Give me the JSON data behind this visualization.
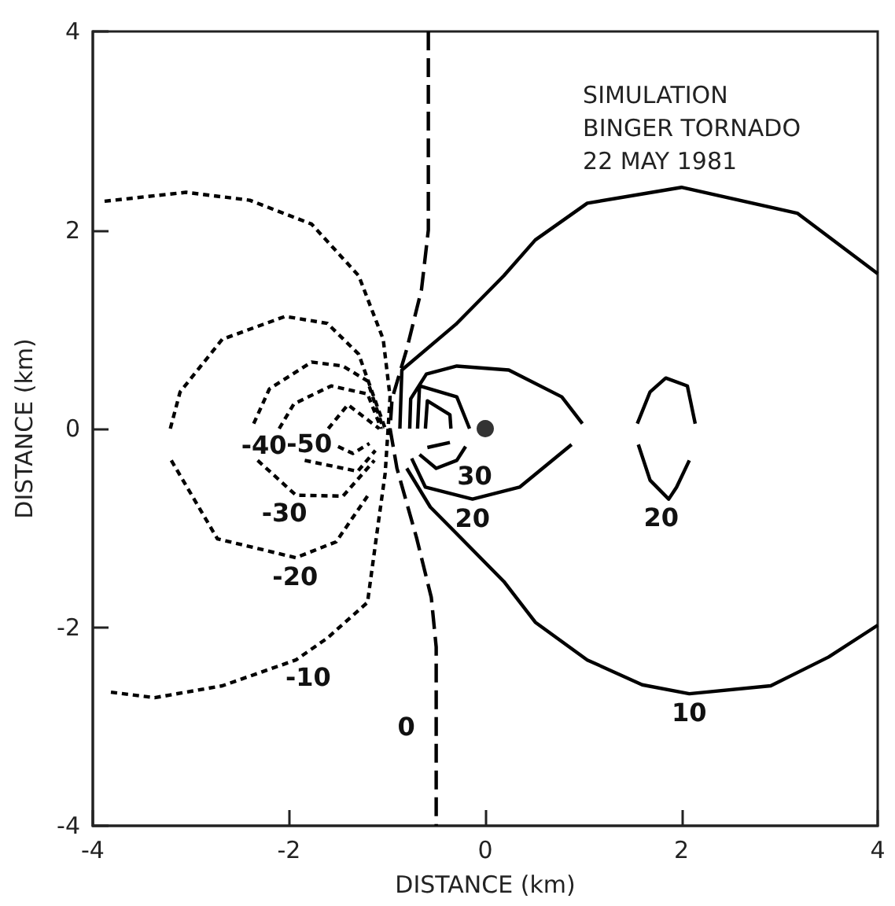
{
  "chart_data": {
    "type": "line",
    "xlabel": "DISTANCE (km)",
    "ylabel": "DISTANCE (km)",
    "xlim": [
      -4,
      4
    ],
    "ylim": [
      -4,
      4
    ],
    "xticks": [
      -4,
      -2,
      0,
      2,
      4
    ],
    "yticks": [
      -4,
      -2,
      0,
      2,
      4
    ],
    "marker": "none",
    "series": [
      {
        "color": "#000000",
        "line_style": "dashed",
        "x": [
          -0.58,
          -0.58,
          -0.58,
          -0.65,
          -0.8,
          -0.95,
          -0.97,
          -0.9,
          -0.7,
          -0.55,
          -0.5,
          -0.5,
          -0.5
        ],
        "values": [
          4,
          3,
          2,
          1.4,
          0.8,
          0.3,
          0,
          -0.4,
          -1.1,
          -1.7,
          -2.2,
          -3,
          -4
        ]
      },
      {
        "color": "#000000",
        "line_style": "dotted",
        "x": [
          -3.88,
          -3.05,
          -2.4,
          -1.77,
          -1.29,
          -1.04,
          -0.97,
          -0.99,
          -1.02,
          -1.09,
          -1.2,
          -1.61,
          -1.93,
          -2.68,
          -3.37,
          -3.85
        ],
        "values": [
          2.29,
          2.38,
          2.3,
          2.06,
          1.54,
          0.9,
          0.32,
          0,
          -0.45,
          -0.95,
          -1.75,
          -2.11,
          -2.33,
          -2.59,
          -2.71,
          -2.65
        ]
      },
      {
        "color": "#000000",
        "line_style": "dotted",
        "x": [
          -3.21,
          -3.11,
          -2.68,
          -2.04,
          -1.61,
          -1.29,
          -1.02
        ],
        "values": [
          0,
          0.37,
          0.9,
          1.13,
          1.06,
          0.75,
          0
        ]
      },
      {
        "color": "#000000",
        "line_style": "dotted",
        "x": [
          -3.2,
          -2.73,
          -1.93,
          -1.52,
          -1.2
        ],
        "values": [
          -0.32,
          -1.11,
          -1.3,
          -1.14,
          -0.68
        ]
      },
      {
        "color": "#000000",
        "line_style": "dotted",
        "x": [
          -2.36,
          -2.2,
          -1.77,
          -1.45,
          -1.2,
          -1.04
        ],
        "values": [
          0.05,
          0.4,
          0.67,
          0.63,
          0.48,
          0
        ]
      },
      {
        "color": "#000000",
        "line_style": "dotted",
        "x": [
          -2.32,
          -1.93,
          -1.45,
          -1.13
        ],
        "values": [
          -0.32,
          -0.67,
          -0.68,
          -0.32
        ]
      },
      {
        "color": "#000000",
        "line_style": "dotted",
        "x": [
          -2.1,
          -1.95,
          -1.57,
          -1.2,
          -1.06
        ],
        "values": [
          0,
          0.25,
          0.43,
          0.35,
          0
        ]
      },
      {
        "color": "#000000",
        "line_style": "dotted",
        "x": [
          -1.84,
          -1.3,
          -1.12
        ],
        "values": [
          -0.32,
          -0.43,
          -0.22
        ]
      },
      {
        "color": "#000000",
        "line_style": "dotted",
        "x": [
          -1.6,
          -1.4,
          -1.08
        ],
        "values": [
          0,
          0.24,
          0
        ]
      },
      {
        "color": "#000000",
        "line_style": "dotted",
        "x": [
          -1.5,
          -1.35,
          -1.18
        ],
        "values": [
          -0.18,
          -0.25,
          -0.15
        ]
      },
      {
        "color": "#000000",
        "line_style": "solid",
        "x": [
          -0.87,
          -0.86,
          -0.85,
          -0.3,
          0.19,
          0.51,
          1.04,
          2,
          3.18,
          4
        ],
        "values": [
          0,
          0.3,
          0.59,
          1.05,
          1.54,
          1.9,
          2.27,
          2.43,
          2.17,
          1.56
        ]
      },
      {
        "color": "#000000",
        "line_style": "solid",
        "x": [
          -0.8,
          -0.56,
          -0.29,
          0.19,
          0.51,
          1.04,
          1.6,
          2.08,
          2.91,
          3.5,
          4
        ],
        "values": [
          -0.4,
          -0.79,
          -1.06,
          -1.54,
          -1.95,
          -2.33,
          -2.58,
          -2.67,
          -2.59,
          -2.3,
          -1.98
        ]
      },
      {
        "color": "#000000",
        "line_style": "solid",
        "x": [
          -0.77,
          -0.76,
          -0.6,
          -0.29,
          0.24,
          0.78,
          0.99
        ],
        "values": [
          0,
          0.3,
          0.55,
          0.63,
          0.59,
          0.32,
          0.05
        ]
      },
      {
        "color": "#000000",
        "line_style": "solid",
        "x": [
          -0.75,
          -0.61,
          -0.13,
          0.35,
          0.88
        ],
        "values": [
          -0.3,
          -0.59,
          -0.71,
          -0.59,
          -0.16
        ]
      },
      {
        "color": "#000000",
        "line_style": "solid",
        "x": [
          1.55,
          1.68,
          1.84,
          2.06,
          2.14
        ],
        "values": [
          0.05,
          0.37,
          0.51,
          0.43,
          0.05
        ]
      },
      {
        "color": "#000000",
        "line_style": "solid",
        "x": [
          1.56,
          1.68,
          1.87,
          1.95,
          2.08
        ],
        "values": [
          -0.16,
          -0.52,
          -0.71,
          -0.59,
          -0.32
        ]
      },
      {
        "color": "#000000",
        "line_style": "solid",
        "x": [
          -0.69,
          -0.67,
          -0.29,
          -0.16
        ],
        "values": [
          0,
          0.43,
          0.32,
          0
        ]
      },
      {
        "color": "#000000",
        "line_style": "solid",
        "x": [
          -0.67,
          -0.5,
          -0.29,
          -0.2
        ],
        "values": [
          -0.26,
          -0.4,
          -0.32,
          -0.18
        ]
      },
      {
        "color": "#000000",
        "line_style": "solid",
        "x": [
          -0.61,
          -0.59,
          -0.36,
          -0.35
        ],
        "values": [
          0,
          0.28,
          0.14,
          0
        ]
      },
      {
        "color": "#000000",
        "line_style": "solid",
        "x": [
          -0.59,
          -0.36
        ],
        "values": [
          -0.19,
          -0.14
        ]
      },
      {
        "type": "scatter",
        "marker": "circle",
        "color": "#000000",
        "x": [
          0
        ],
        "values": [
          0
        ]
      }
    ],
    "annotations": [
      "SIMULATION\nBINGER TORNADO\n22 MAY 1981",
      {
        "text": "-40",
        "x": -2.1,
        "y": 0
      },
      {
        "text": "-50",
        "x": -1.6,
        "y": 0
      },
      {
        "text": "-30",
        "x": -1.93,
        "y": -0.67
      },
      {
        "text": "-20",
        "x": -1.93,
        "y": -1.3
      },
      {
        "text": "-10",
        "x": -1.93,
        "y": -2.33
      },
      {
        "text": "0",
        "x": -0.5,
        "y": -3
      },
      {
        "text": "10",
        "x": 2.08,
        "y": -2.67
      },
      {
        "text": "20",
        "x": -0.13,
        "y": -0.71
      },
      {
        "text": "20",
        "x": 1.87,
        "y": -0.71
      },
      {
        "text": "30",
        "x": -0.29,
        "y": -0.32
      }
    ]
  }
}
